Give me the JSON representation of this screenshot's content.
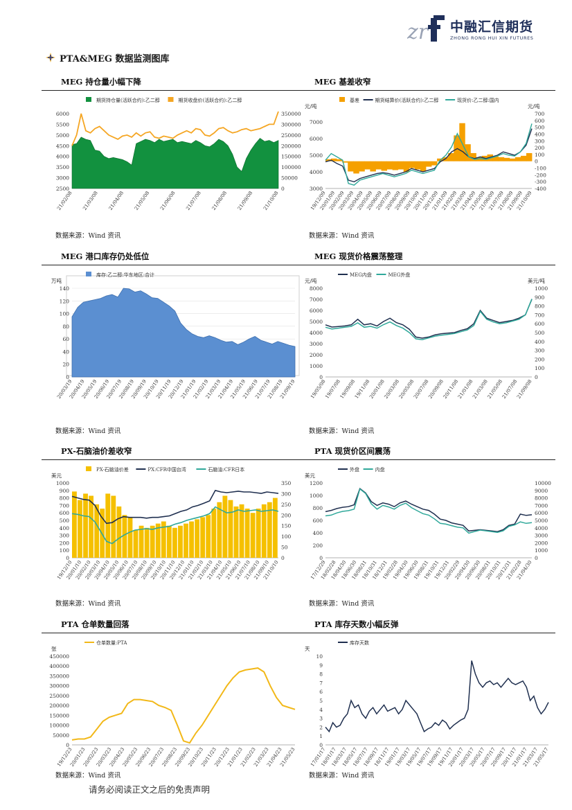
{
  "header": {
    "logo_cn": "中融汇信期货",
    "logo_en": "ZHONG RONG HUI XIN FUTURES",
    "logo_mark": "zrf"
  },
  "section_title": "PTA&MEG 数据监测图库",
  "source_text": "数据来源：Wind 资讯",
  "footer": "请务必阅读正文之后的免责声明",
  "titles": [
    "MEG 持仓量小幅下降",
    "MEG 基差收窄",
    "MEG 港口库存仍处低位",
    "MEG 现货价格震荡整理",
    "PX-石脑油价差收窄",
    "PTA 现货价区间震荡",
    "PTA 仓单数量回落",
    "PTA 库存天数小幅反弹"
  ],
  "chart_data": [
    {
      "type": "area",
      "legend": [
        "期货持仓量(活跃合约):乙二醇",
        "期货收盘价(活跃合约):乙二醇"
      ],
      "colors": [
        "#12913f",
        "#f5a623"
      ],
      "x_ticks": [
        "21/02/08",
        "21/03/08",
        "21/04/08",
        "21/05/08",
        "21/06/08",
        "21/07/08",
        "21/08/08",
        "21/09/08",
        "21/10/08"
      ],
      "y_left_ticks": [
        "2500",
        "3000",
        "3500",
        "4000",
        "4500",
        "5000",
        "5500",
        "6000"
      ],
      "y_right_ticks": [
        "0",
        "50000",
        "100000",
        "150000",
        "200000",
        "250000",
        "300000",
        "350000"
      ],
      "ylim_left": [
        2500,
        6000
      ],
      "ylim_right": [
        0,
        350000
      ],
      "series_right_area": [
        205000,
        210000,
        240000,
        230000,
        225000,
        180000,
        175000,
        150000,
        140000,
        145000,
        140000,
        135000,
        125000,
        110000,
        210000,
        220000,
        230000,
        225000,
        215000,
        230000,
        220000,
        225000,
        230000,
        215000,
        220000,
        215000,
        210000,
        225000,
        215000,
        200000,
        195000,
        210000,
        230000,
        220000,
        200000,
        160000,
        100000,
        80000,
        140000,
        180000,
        210000,
        235000,
        220000,
        225000,
        215000,
        225000
      ],
      "series_left_line": [
        4500,
        5000,
        6000,
        5200,
        5100,
        5300,
        5400,
        5200,
        5000,
        4900,
        4800,
        4950,
        5000,
        4900,
        5100,
        4950,
        5100,
        5150,
        4900,
        4850,
        4950,
        4900,
        4850,
        5000,
        5100,
        5200,
        5100,
        5300,
        5250,
        5000,
        4950,
        5100,
        5300,
        5350,
        5200,
        5100,
        5150,
        5250,
        5300,
        5200,
        5250,
        5300,
        5400,
        5500,
        5500,
        6100
      ]
    },
    {
      "type": "bar+line",
      "legend": [
        "基差",
        "期货结算价(活跃合约):乙二醇",
        "现货价:乙二醇:国内"
      ],
      "colors": [
        "#f5a000",
        "#1f2f4f",
        "#2fa89a"
      ],
      "y_left_unit": "元/吨",
      "y_right_unit": "元/吨",
      "x_ticks": [
        "19/12/09",
        "20/01/09",
        "20/02/09",
        "20/03/09",
        "20/04/09",
        "20/05/09",
        "20/06/09",
        "20/07/09",
        "20/08/09",
        "20/09/09",
        "20/10/09",
        "20/11/09",
        "20/12/09",
        "21/01/09",
        "21/02/09",
        "21/03/09",
        "21/04/09",
        "21/05/09",
        "21/06/09",
        "21/07/09",
        "21/08/09",
        "21/09/09",
        "21/10/09"
      ],
      "y_left_ticks": [
        "3000",
        "4000",
        "5000",
        "6000",
        "7000"
      ],
      "y_right_ticks": [
        "-400",
        "-300",
        "-200",
        "-100",
        "0",
        "100",
        "200",
        "300",
        "400",
        "500",
        "600",
        "700"
      ],
      "ylim_left": [
        3000,
        7500
      ],
      "ylim_right": [
        -400,
        700
      ],
      "basis": [
        30,
        40,
        30,
        -20,
        -150,
        -180,
        -150,
        -120,
        -150,
        -120,
        -140,
        -120,
        -130,
        -120,
        -160,
        -100,
        -120,
        -150,
        -80,
        -60,
        40,
        60,
        120,
        380,
        560,
        250,
        120,
        60,
        80,
        100,
        70,
        60,
        50,
        40,
        60,
        80,
        120
      ],
      "futures": [
        4600,
        4700,
        4500,
        4350,
        3500,
        3400,
        3600,
        3700,
        3800,
        3900,
        3950,
        3900,
        3800,
        3900,
        4000,
        4200,
        4100,
        4000,
        4100,
        4200,
        4600,
        4800,
        5200,
        5400,
        5200,
        4900,
        4800,
        4900,
        4800,
        4900,
        5000,
        5200,
        5100,
        5000,
        5200,
        5600,
        6600
      ],
      "spot": [
        4700,
        5100,
        4900,
        4700,
        3300,
        3200,
        3500,
        3600,
        3700,
        3800,
        3900,
        3800,
        3700,
        3800,
        3900,
        4100,
        4000,
        3900,
        4000,
        4100,
        4700,
        5000,
        5500,
        6300,
        5600,
        4900,
        4750,
        4800,
        4750,
        4850,
        4950,
        5100,
        5000,
        4950,
        5200,
        5700,
        6900
      ]
    },
    {
      "type": "area",
      "legend": [
        "库存:乙二醇:华东地区:合计"
      ],
      "colors": [
        "#5b8fd1"
      ],
      "y_unit": "万吨",
      "x_ticks": [
        "20/03/19",
        "20/04/19",
        "20/05/19",
        "20/06/19",
        "20/07/19",
        "20/08/19",
        "20/09/19",
        "20/10/19",
        "20/11/19",
        "20/12/19",
        "21/01/19",
        "21/02/19",
        "21/03/19",
        "21/04/19",
        "21/05/19",
        "21/06/19",
        "21/07/19",
        "21/08/19",
        "21/09/19"
      ],
      "y_ticks": [
        "0",
        "20",
        "40",
        "60",
        "80",
        "100",
        "120",
        "140"
      ],
      "ylim": [
        0,
        140
      ],
      "values": [
        95,
        110,
        118,
        120,
        122,
        124,
        128,
        130,
        126,
        140,
        139,
        134,
        136,
        131,
        125,
        124,
        118,
        112,
        104,
        85,
        75,
        68,
        64,
        62,
        65,
        62,
        58,
        55,
        56,
        51,
        55,
        60,
        64,
        58,
        55,
        52,
        56,
        53,
        50,
        48
      ]
    },
    {
      "type": "line",
      "legend": [
        "MEG内盘",
        "MEG外盘"
      ],
      "colors": [
        "#1f2f4f",
        "#2fa89a"
      ],
      "y_left_unit": "元/吨",
      "y_right_unit": "美元/吨",
      "x_ticks": [
        "19/05/08",
        "19/07/08",
        "19/09/08",
        "19/11/08",
        "20/01/08",
        "20/03/08",
        "20/05/08",
        "20/07/08",
        "20/09/08",
        "20/11/08",
        "21/01/08",
        "21/03/08",
        "21/05/08",
        "21/07/08",
        "21/09/08"
      ],
      "y_left_ticks": [
        "0",
        "1000",
        "2000",
        "3000",
        "4000",
        "5000",
        "6000",
        "7000",
        "8000"
      ],
      "y_right_ticks": [
        "0",
        "100",
        "200",
        "300",
        "400",
        "500",
        "600",
        "700",
        "800",
        "900",
        "1000"
      ],
      "ylim_left": [
        0,
        8000
      ],
      "ylim_right": [
        0,
        1000
      ],
      "inner": [
        4700,
        4500,
        4550,
        4600,
        4700,
        5200,
        4700,
        4800,
        4600,
        5000,
        5300,
        4900,
        4700,
        4300,
        3600,
        3500,
        3600,
        3800,
        3900,
        3950,
        4000,
        4200,
        4350,
        4800,
        6000,
        5300,
        5100,
        4900,
        5000,
        5100,
        5300,
        5600,
        7000
      ],
      "outer": [
        560,
        540,
        550,
        560,
        570,
        610,
        560,
        570,
        550,
        590,
        620,
        580,
        550,
        500,
        430,
        420,
        440,
        460,
        470,
        480,
        490,
        510,
        530,
        580,
        740,
        650,
        620,
        600,
        610,
        630,
        650,
        700,
        880
      ]
    },
    {
      "type": "bar+line",
      "legend": [
        "PX-石脑油价差",
        "PX:CFR中国台湾",
        "石脑油:CFR日本"
      ],
      "colors": [
        "#f5c000",
        "#1f2f4f",
        "#2fa89a"
      ],
      "y_left_unit": "美元",
      "x_ticks": [
        "19/12/10",
        "20/01/10",
        "20/02/10",
        "20/03/10",
        "20/04/10",
        "20/05/10",
        "20/06/10",
        "20/07/10",
        "20/08/10",
        "20/09/10",
        "20/10/10",
        "20/11/10",
        "20/12/10",
        "21/01/10",
        "21/02/10",
        "21/03/10",
        "21/04/10",
        "21/05/10",
        "21/06/10",
        "21/07/10",
        "21/08/10",
        "21/09/10",
        "21/10/10"
      ],
      "y_left_ticks": [
        "0",
        "100",
        "200",
        "300",
        "400",
        "500",
        "600",
        "700",
        "800",
        "900",
        "1000"
      ],
      "y_right_ticks": [
        "0",
        "50",
        "100",
        "150",
        "200",
        "250",
        "300",
        "350"
      ],
      "ylim_left": [
        0,
        1000
      ],
      "ylim_right": [
        0,
        350
      ],
      "spread": [
        310,
        270,
        300,
        290,
        250,
        230,
        300,
        290,
        240,
        200,
        190,
        130,
        150,
        140,
        150,
        160,
        170,
        150,
        140,
        150,
        160,
        170,
        180,
        190,
        200,
        230,
        260,
        290,
        270,
        240,
        250,
        230,
        210,
        230,
        250,
        260,
        280
      ],
      "px": [
        820,
        800,
        780,
        770,
        700,
        560,
        460,
        470,
        520,
        550,
        540,
        540,
        540,
        530,
        540,
        540,
        550,
        560,
        590,
        620,
        640,
        680,
        700,
        730,
        760,
        900,
        880,
        870,
        880,
        890,
        880,
        880,
        870,
        860,
        880,
        870,
        860
      ],
      "naphtha": [
        590,
        580,
        560,
        550,
        480,
        350,
        220,
        190,
        250,
        300,
        340,
        370,
        380,
        390,
        380,
        400,
        410,
        420,
        450,
        470,
        500,
        520,
        540,
        560,
        590,
        680,
        640,
        600,
        610,
        640,
        620,
        630,
        640,
        620,
        630,
        640,
        620
      ]
    },
    {
      "type": "line",
      "legend": [
        "外盘",
        "内盘"
      ],
      "colors": [
        "#1f2f4f",
        "#2fa89a"
      ],
      "y_left_unit": "美元",
      "x_ticks": [
        "17/12/29",
        "18/02/28",
        "18/04/30",
        "18/06/30",
        "18/08/31",
        "18/10/31",
        "18/12/31",
        "19/02/28",
        "19/04/30",
        "19/06/30",
        "19/08/31",
        "19/10/31",
        "19/12/31",
        "20/02/29",
        "20/04/30",
        "20/06/30",
        "20/08/31",
        "20/10/31",
        "20/12/31",
        "21/02/28",
        "21/04/30"
      ],
      "y_left_ticks": [
        "0",
        "200",
        "400",
        "600",
        "800",
        "1000",
        "1200"
      ],
      "y_right_ticks": [
        "0",
        "1000",
        "2000",
        "3000",
        "4000",
        "5000",
        "6000",
        "7000",
        "8000",
        "9000",
        "10000"
      ],
      "ylim_left": [
        0,
        1200
      ],
      "ylim_right": [
        0,
        10000
      ],
      "outer": [
        740,
        760,
        790,
        810,
        820,
        850,
        1110,
        1040,
        900,
        840,
        880,
        860,
        820,
        880,
        910,
        860,
        820,
        780,
        760,
        700,
        620,
        600,
        560,
        540,
        520,
        430,
        440,
        450,
        440,
        430,
        420,
        450,
        520,
        540,
        700,
        680,
        690
      ],
      "inner": [
        5600,
        5700,
        6000,
        6200,
        6300,
        6500,
        9200,
        8600,
        7200,
        6500,
        7000,
        6800,
        6500,
        7000,
        7300,
        6700,
        6300,
        5900,
        5700,
        5200,
        4600,
        4500,
        4300,
        4100,
        4000,
        3300,
        3500,
        3700,
        3600,
        3500,
        3400,
        3600,
        4200,
        4400,
        4800,
        4600,
        4700
      ]
    },
    {
      "type": "line",
      "legend": [
        "仓单数量:PTA"
      ],
      "colors": [
        "#f2b818"
      ],
      "y_unit": "张",
      "x_ticks": [
        "19/12/23",
        "20/01/23",
        "20/02/23",
        "20/03/23",
        "20/04/23",
        "20/05/23",
        "20/06/23",
        "20/07/23",
        "20/08/23",
        "20/09/23",
        "20/10/23",
        "20/11/23",
        "20/12/23",
        "21/01/23",
        "21/02/23",
        "21/03/23",
        "21/04/23",
        "21/05/23"
      ],
      "y_ticks": [
        "0",
        "50000",
        "100000",
        "150000",
        "200000",
        "250000",
        "300000",
        "350000",
        "400000",
        "450000"
      ],
      "ylim": [
        0,
        450000
      ],
      "values": [
        25000,
        30000,
        30000,
        40000,
        80000,
        120000,
        140000,
        150000,
        160000,
        210000,
        230000,
        230000,
        225000,
        220000,
        200000,
        190000,
        175000,
        100000,
        20000,
        10000,
        60000,
        100000,
        150000,
        200000,
        250000,
        300000,
        340000,
        370000,
        380000,
        385000,
        390000,
        370000,
        300000,
        240000,
        200000,
        190000,
        180000
      ]
    },
    {
      "type": "line",
      "legend": [
        "库存天数"
      ],
      "colors": [
        "#1f2f4f"
      ],
      "y_unit": "天",
      "x_ticks": [
        "17/01/17",
        "18/01/17",
        "18/03/17",
        "18/05/17",
        "18/07/17",
        "18/09/17",
        "18/11/17",
        "19/01/17",
        "19/03/17",
        "19/05/17",
        "19/07/17",
        "19/09/17",
        "19/11/17",
        "20/01/17",
        "20/03/17",
        "20/05/17",
        "20/07/17",
        "20/09/17",
        "20/11/17",
        "21/01/17",
        "21/03/17",
        "21/05/17"
      ],
      "y_ticks": [
        "0",
        "1",
        "2",
        "3",
        "4",
        "5",
        "6",
        "7",
        "8",
        "9",
        "10"
      ],
      "ylim": [
        0,
        10
      ],
      "values": [
        2,
        1.5,
        2.5,
        2,
        2.2,
        3,
        3.5,
        5,
        4.2,
        4.5,
        3.5,
        3,
        3.8,
        4.2,
        3.5,
        4,
        4.5,
        3.8,
        4,
        4.2,
        3.5,
        4,
        5,
        4.5,
        4,
        3.5,
        2.5,
        1.5,
        1.8,
        2,
        2.5,
        2.2,
        2.8,
        2.5,
        1.8,
        2.2,
        2.5,
        2.8,
        3,
        4,
        9.5,
        8,
        7,
        6.5,
        7,
        7.2,
        6.8,
        7,
        6.5,
        7,
        7.5,
        7,
        6.8,
        7,
        7.2,
        6.5,
        5,
        5.5,
        4.2,
        3.5,
        4,
        4.8
      ]
    }
  ]
}
